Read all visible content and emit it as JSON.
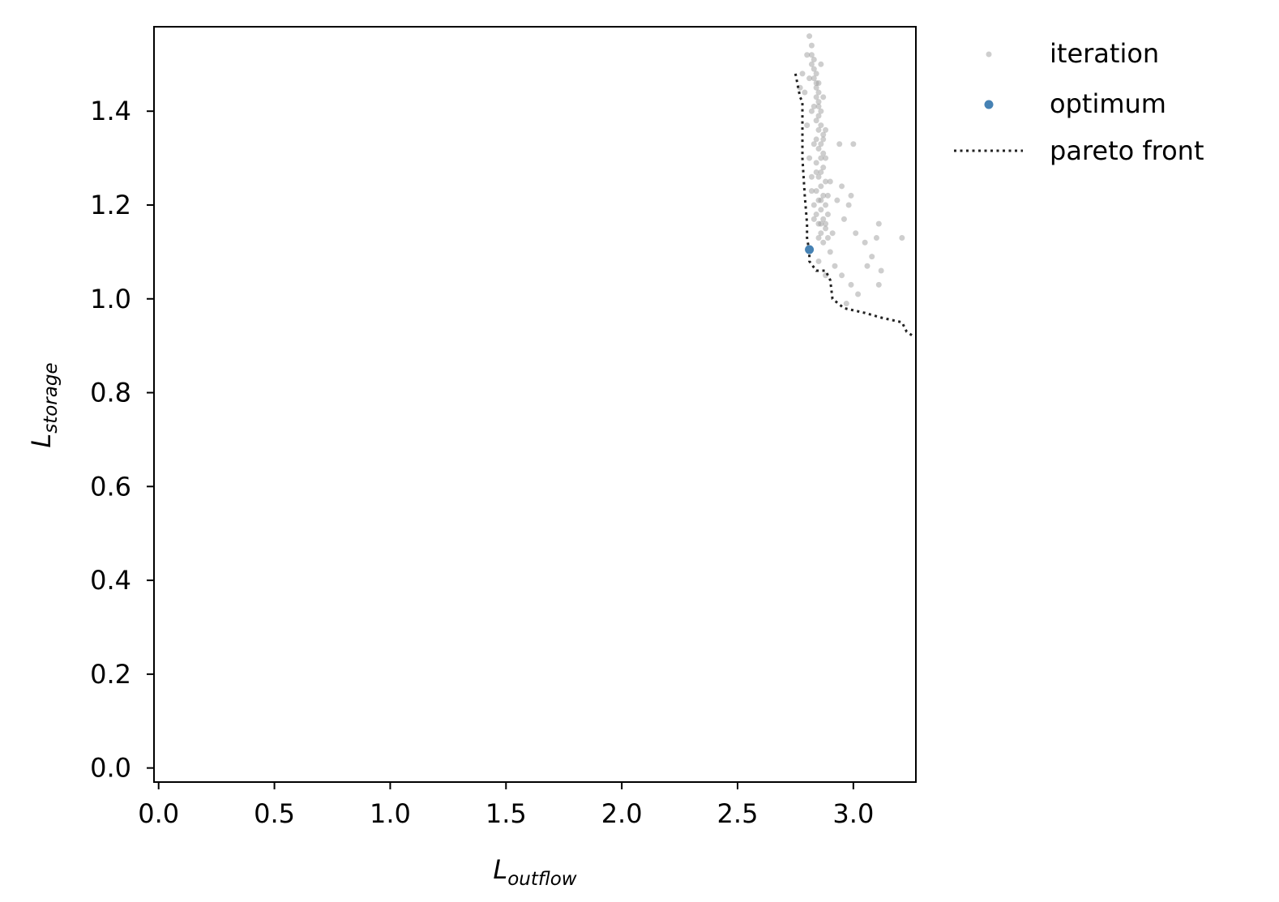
{
  "chart_data": {
    "type": "scatter",
    "title": "",
    "xlabel": {
      "main": "L",
      "sub": "outflow"
    },
    "ylabel": {
      "main": "L",
      "sub": "storage"
    },
    "xlim": [
      -0.02,
      3.27
    ],
    "ylim": [
      -0.03,
      1.58
    ],
    "xticks": [
      0.0,
      0.5,
      1.0,
      1.5,
      2.0,
      2.5,
      3.0
    ],
    "xtick_labels": [
      "0.0",
      "0.5",
      "1.0",
      "1.5",
      "2.0",
      "2.5",
      "3.0"
    ],
    "yticks": [
      0.0,
      0.2,
      0.4,
      0.6,
      0.8,
      1.0,
      1.2,
      1.4
    ],
    "ytick_labels": [
      "0.0",
      "0.2",
      "0.4",
      "0.6",
      "0.8",
      "1.0",
      "1.2",
      "1.4"
    ],
    "grid": false,
    "legend_position": "outside-top-right",
    "legend": [
      "iteration",
      "optimum",
      "pareto front"
    ],
    "colors": {
      "iteration": "#9e9e9e",
      "optimum": "#4682b4",
      "pareto_front": "#222222"
    },
    "series": [
      {
        "name": "iteration",
        "style": "scatter",
        "points": [
          [
            2.81,
            1.56
          ],
          [
            2.82,
            1.54
          ],
          [
            2.82,
            1.52
          ],
          [
            2.83,
            1.51
          ],
          [
            2.82,
            1.5
          ],
          [
            2.83,
            1.49
          ],
          [
            2.84,
            1.48
          ],
          [
            2.83,
            1.47
          ],
          [
            2.84,
            1.46
          ],
          [
            2.84,
            1.45
          ],
          [
            2.85,
            1.44
          ],
          [
            2.84,
            1.43
          ],
          [
            2.85,
            1.42
          ],
          [
            2.85,
            1.41
          ],
          [
            2.86,
            1.4
          ],
          [
            2.85,
            1.39
          ],
          [
            2.84,
            1.38
          ],
          [
            2.86,
            1.37
          ],
          [
            2.85,
            1.36
          ],
          [
            2.87,
            1.35
          ],
          [
            2.84,
            1.34
          ],
          [
            2.86,
            1.33
          ],
          [
            2.85,
            1.32
          ],
          [
            2.87,
            1.31
          ],
          [
            2.86,
            1.3
          ],
          [
            2.84,
            1.29
          ],
          [
            2.87,
            1.28
          ],
          [
            2.86,
            1.27
          ],
          [
            2.85,
            1.26
          ],
          [
            2.88,
            1.25
          ],
          [
            2.86,
            1.24
          ],
          [
            2.84,
            1.23
          ],
          [
            2.87,
            1.22
          ],
          [
            2.85,
            1.21
          ],
          [
            2.88,
            1.2
          ],
          [
            2.86,
            1.19
          ],
          [
            2.84,
            1.18
          ],
          [
            2.87,
            1.17
          ],
          [
            2.85,
            1.16
          ],
          [
            2.88,
            1.15
          ],
          [
            2.86,
            1.14
          ],
          [
            2.89,
            1.13
          ],
          [
            2.87,
            1.12
          ],
          [
            2.85,
            1.13
          ],
          [
            2.88,
            1.16
          ],
          [
            2.83,
            1.2
          ],
          [
            2.89,
            1.22
          ],
          [
            2.82,
            1.26
          ],
          [
            2.88,
            1.3
          ],
          [
            2.83,
            1.33
          ],
          [
            2.88,
            1.36
          ],
          [
            2.82,
            1.4
          ],
          [
            2.87,
            1.43
          ],
          [
            2.81,
            1.47
          ],
          [
            2.86,
            1.5
          ],
          [
            2.79,
            1.44
          ],
          [
            2.8,
            1.37
          ],
          [
            2.81,
            1.3
          ],
          [
            2.82,
            1.23
          ],
          [
            2.83,
            1.17
          ],
          [
            2.9,
            1.25
          ],
          [
            2.89,
            1.18
          ],
          [
            2.91,
            1.14
          ],
          [
            2.9,
            1.1
          ],
          [
            2.93,
            1.21
          ],
          [
            2.95,
            1.24
          ],
          [
            2.96,
            1.17
          ],
          [
            2.98,
            1.2
          ],
          [
            3.0,
            1.33
          ],
          [
            2.94,
            1.33
          ],
          [
            2.99,
            1.22
          ],
          [
            3.01,
            1.14
          ],
          [
            3.05,
            1.12
          ],
          [
            3.11,
            1.16
          ],
          [
            3.1,
            1.13
          ],
          [
            3.08,
            1.09
          ],
          [
            3.12,
            1.06
          ],
          [
            3.21,
            1.13
          ],
          [
            2.92,
            1.07
          ],
          [
            2.95,
            1.05
          ],
          [
            2.99,
            1.03
          ],
          [
            3.02,
            1.01
          ],
          [
            2.97,
            0.99
          ],
          [
            3.06,
            1.07
          ],
          [
            3.11,
            1.03
          ],
          [
            2.88,
            1.05
          ],
          [
            2.85,
            1.08
          ],
          [
            2.78,
            1.48
          ],
          [
            2.77,
            1.45
          ],
          [
            2.8,
            1.52
          ],
          [
            2.84,
            1.27
          ],
          [
            2.86,
            1.21
          ],
          [
            2.87,
            1.34
          ],
          [
            2.83,
            1.41
          ],
          [
            2.85,
            1.46
          ],
          [
            2.86,
            1.16
          ]
        ]
      },
      {
        "name": "optimum",
        "style": "scatter",
        "points": [
          [
            2.81,
            1.105
          ]
        ]
      },
      {
        "name": "pareto front",
        "style": "dotted-line",
        "points": [
          [
            2.75,
            1.48
          ],
          [
            2.77,
            1.43
          ],
          [
            2.78,
            1.42
          ],
          [
            2.78,
            1.38
          ],
          [
            2.78,
            1.3
          ],
          [
            2.79,
            1.22
          ],
          [
            2.8,
            1.16
          ],
          [
            2.8,
            1.13
          ],
          [
            2.81,
            1.1
          ],
          [
            2.81,
            1.08
          ],
          [
            2.84,
            1.06
          ],
          [
            2.88,
            1.06
          ],
          [
            2.9,
            1.04
          ],
          [
            2.91,
            1.0
          ],
          [
            2.96,
            0.98
          ],
          [
            3.05,
            0.97
          ],
          [
            3.12,
            0.96
          ],
          [
            3.21,
            0.95
          ],
          [
            3.23,
            0.93
          ],
          [
            3.26,
            0.92
          ]
        ]
      }
    ]
  }
}
